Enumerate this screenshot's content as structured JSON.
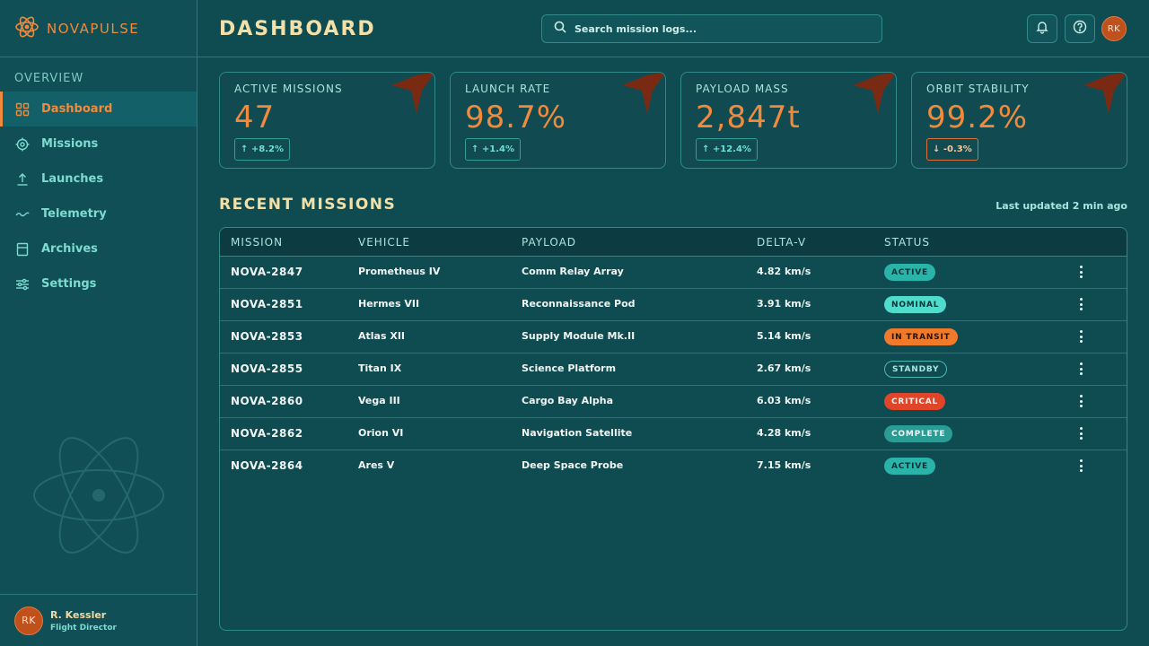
{
  "brand": {
    "name": "NOVAPULSE"
  },
  "sidebar": {
    "section_label": "OVERVIEW",
    "items": [
      {
        "label": "Dashboard",
        "icon": "grid-icon",
        "active": true
      },
      {
        "label": "Missions",
        "icon": "target-icon"
      },
      {
        "label": "Launches",
        "icon": "upload-icon"
      },
      {
        "label": "Telemetry",
        "icon": "wave-icon"
      },
      {
        "label": "Archives",
        "icon": "archive-icon"
      },
      {
        "label": "Settings",
        "icon": "sliders-icon"
      }
    ],
    "user": {
      "initials": "RK",
      "name": "R. Kessler",
      "role": "Flight Director"
    }
  },
  "header": {
    "title": "DASHBOARD",
    "search_placeholder": "Search mission logs...",
    "avatar_initials": "RK"
  },
  "kpis": [
    {
      "label": "ACTIVE MISSIONS",
      "value": "47",
      "change": "↑ +8.2%",
      "trend": "up"
    },
    {
      "label": "LAUNCH RATE",
      "value": "98.7%",
      "change": "↑ +1.4%",
      "trend": "up"
    },
    {
      "label": "PAYLOAD MASS",
      "value": "2,847t",
      "change": "↑ +12.4%",
      "trend": "up"
    },
    {
      "label": "ORBIT STABILITY",
      "value": "99.2%",
      "change": "↓ -0.3%",
      "trend": "down"
    }
  ],
  "missions": {
    "title": "RECENT MISSIONS",
    "last_updated": "Last updated 2 min ago",
    "columns": [
      "MISSION",
      "VEHICLE",
      "PAYLOAD",
      "DELTA-V",
      "STATUS"
    ],
    "rows": [
      {
        "mission": "NOVA-2847",
        "vehicle": "Prometheus IV",
        "payload": "Comm Relay Array",
        "delta_v": "4.82 km/s",
        "status": "ACTIVE",
        "status_class": "st-active"
      },
      {
        "mission": "NOVA-2851",
        "vehicle": "Hermes VII",
        "payload": "Reconnaissance Pod",
        "delta_v": "3.91 km/s",
        "status": "NOMINAL",
        "status_class": "st-nominal"
      },
      {
        "mission": "NOVA-2853",
        "vehicle": "Atlas XII",
        "payload": "Supply Module Mk.II",
        "delta_v": "5.14 km/s",
        "status": "IN TRANSIT",
        "status_class": "st-transit"
      },
      {
        "mission": "NOVA-2855",
        "vehicle": "Titan IX",
        "payload": "Science Platform",
        "delta_v": "2.67 km/s",
        "status": "STANDBY",
        "status_class": "st-standby"
      },
      {
        "mission": "NOVA-2860",
        "vehicle": "Vega III",
        "payload": "Cargo Bay Alpha",
        "delta_v": "6.03 km/s",
        "status": "CRITICAL",
        "status_class": "st-critical"
      },
      {
        "mission": "NOVA-2862",
        "vehicle": "Orion VI",
        "payload": "Navigation Satellite",
        "delta_v": "4.28 km/s",
        "status": "COMPLETE",
        "status_class": "st-complete"
      },
      {
        "mission": "NOVA-2864",
        "vehicle": "Ares V",
        "payload": "Deep Space Probe",
        "delta_v": "7.15 km/s",
        "status": "ACTIVE",
        "status_class": "st-active"
      }
    ]
  },
  "colors": {
    "background": "#0f4c52",
    "accent": "#f08a3c",
    "teal": "#7ddbd2",
    "heading": "#f2e0a8"
  }
}
